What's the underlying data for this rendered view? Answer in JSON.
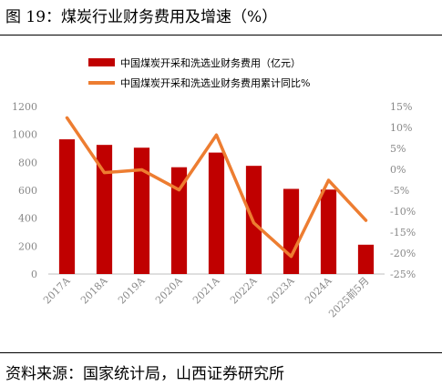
{
  "figure": {
    "title": "图 19：煤炭行业财务费用及增速（%）",
    "source": "资料来源：国家统计局，山西证券研究所"
  },
  "chart_data": {
    "type": "bar+line",
    "categories": [
      "2017A",
      "2018A",
      "2019A",
      "2020A",
      "2021A",
      "2022A",
      "2023A",
      "2024A",
      "2025前5月"
    ],
    "series": [
      {
        "name": "中国煤炭开采和洗选业财务费用（亿元）",
        "type": "bar",
        "axis": "left",
        "color": "#c00000",
        "values": [
          965,
          925,
          905,
          765,
          870,
          775,
          610,
          605,
          210
        ]
      },
      {
        "name": "中国煤炭开采和洗选业财务费用累计同比%",
        "type": "line",
        "axis": "right",
        "color": "#ed7d31",
        "values": [
          12.3,
          -0.8,
          -0.1,
          -4.9,
          8.2,
          -12.8,
          -20.8,
          -2.6,
          -12.2
        ]
      }
    ],
    "left_axis": {
      "ylim": [
        0,
        1200
      ],
      "ticks": [
        "0",
        "200",
        "400",
        "600",
        "800",
        "1000",
        "1200"
      ]
    },
    "right_axis": {
      "ylim": [
        -25,
        15
      ],
      "ticks": [
        "-25%",
        "-20%",
        "-15%",
        "-10%",
        "-5%",
        "0%",
        "5%",
        "10%",
        "15%"
      ]
    },
    "grid": false,
    "legend": "top-center"
  }
}
